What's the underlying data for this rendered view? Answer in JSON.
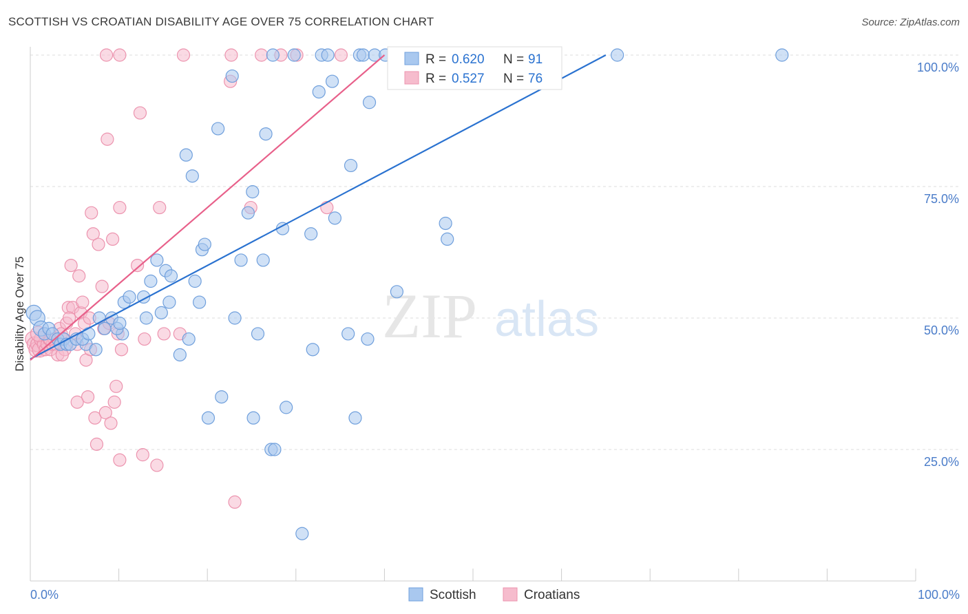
{
  "title": "SCOTTISH VS CROATIAN DISABILITY AGE OVER 75 CORRELATION CHART",
  "source": "Source: ZipAtlas.com",
  "watermark": {
    "zip": "ZIP",
    "atlas": "atlas"
  },
  "colors": {
    "scottish_fill": "#a9c8ef",
    "scottish_stroke": "#6f9fdc",
    "scottish_line": "#2a72d0",
    "croatian_fill": "#f6bccd",
    "croatian_stroke": "#ec93ae",
    "croatian_line": "#e8608a",
    "tick_text": "#4a7cc9",
    "grid": "#dddddd"
  },
  "legend": {
    "rows": [
      {
        "r_label": "R =",
        "r_value": "0.620",
        "n_label": "N =",
        "n_value": "91"
      },
      {
        "r_label": "R =",
        "r_value": "0.527",
        "n_label": "N =",
        "n_value": "76"
      }
    ]
  },
  "bottom_legend": [
    "Scottish",
    "Croatians"
  ],
  "chart_data": {
    "type": "scatter",
    "title": "SCOTTISH VS CROATIAN DISABILITY AGE OVER 75 CORRELATION CHART",
    "xlabel": "",
    "ylabel": "Disability Age Over 75",
    "xlim": [
      0,
      100
    ],
    "ylim": [
      0,
      100
    ],
    "x_tick_labels": [
      "0.0%",
      "100.0%"
    ],
    "y_tick_values": [
      25,
      50,
      75,
      100
    ],
    "y_tick_labels": [
      "25.0%",
      "50.0%",
      "75.0%",
      "100.0%"
    ],
    "grid": true,
    "legend_position": "top-center",
    "series": [
      {
        "name": "Scottish",
        "R": 0.62,
        "N": 91,
        "trend": [
          [
            0,
            42.2
          ],
          [
            65,
            100
          ]
        ],
        "points": [
          [
            0.4,
            51
          ],
          [
            0.8,
            50
          ],
          [
            1.2,
            48
          ],
          [
            1.6,
            47
          ],
          [
            2.1,
            48
          ],
          [
            2.5,
            47
          ],
          [
            3.1,
            46
          ],
          [
            3.4,
            45
          ],
          [
            3.8,
            46
          ],
          [
            4.1,
            45
          ],
          [
            4.5,
            45
          ],
          [
            5.2,
            46
          ],
          [
            6.3,
            45
          ],
          [
            5.9,
            46
          ],
          [
            6.6,
            47
          ],
          [
            7.4,
            44
          ],
          [
            7.8,
            50
          ],
          [
            8.4,
            48
          ],
          [
            9.2,
            50
          ],
          [
            10.4,
            47
          ],
          [
            9.8,
            48
          ],
          [
            10.1,
            49
          ],
          [
            10.6,
            53
          ],
          [
            11.2,
            54
          ],
          [
            12.8,
            54
          ],
          [
            13.1,
            50
          ],
          [
            13.6,
            57
          ],
          [
            14.3,
            61
          ],
          [
            14.8,
            51
          ],
          [
            15.3,
            59
          ],
          [
            15.9,
            58
          ],
          [
            15.7,
            53
          ],
          [
            16.9,
            43
          ],
          [
            17.9,
            46
          ],
          [
            18.6,
            57
          ],
          [
            19.1,
            53
          ],
          [
            19.4,
            63
          ],
          [
            19.7,
            64
          ],
          [
            21.2,
            86
          ],
          [
            22.8,
            96
          ],
          [
            23.1,
            50
          ],
          [
            23.8,
            61
          ],
          [
            24.6,
            70
          ],
          [
            25.1,
            74
          ],
          [
            25.7,
            47
          ],
          [
            26.3,
            61
          ],
          [
            26.6,
            85
          ],
          [
            27.2,
            25
          ],
          [
            27.4,
            100
          ],
          [
            27.6,
            25
          ],
          [
            28.5,
            67
          ],
          [
            28.9,
            33
          ],
          [
            29.8,
            100
          ],
          [
            30.7,
            9
          ],
          [
            31.7,
            66
          ],
          [
            31.9,
            44
          ],
          [
            32.6,
            93
          ],
          [
            32.9,
            100
          ],
          [
            33.6,
            100
          ],
          [
            34.1,
            95
          ],
          [
            34.4,
            69
          ],
          [
            35.9,
            47
          ],
          [
            36.2,
            79
          ],
          [
            37.2,
            100
          ],
          [
            37.6,
            100
          ],
          [
            38.1,
            46
          ],
          [
            38.3,
            91
          ],
          [
            38.9,
            100
          ],
          [
            40.1,
            100
          ],
          [
            41.4,
            55
          ],
          [
            41.6,
            100
          ],
          [
            42.8,
            100
          ],
          [
            43.6,
            100
          ],
          [
            46.9,
            68
          ],
          [
            47.1,
            65
          ],
          [
            47.3,
            100
          ],
          [
            50.1,
            100
          ],
          [
            51.1,
            100
          ],
          [
            52.2,
            100
          ],
          [
            53.6,
            100
          ],
          [
            55.6,
            100
          ],
          [
            57.2,
            100
          ],
          [
            58.8,
            100
          ],
          [
            66.3,
            100
          ],
          [
            84.9,
            100
          ],
          [
            20.1,
            31
          ],
          [
            25.2,
            31
          ],
          [
            36.7,
            31
          ],
          [
            21.6,
            35
          ],
          [
            17.6,
            81
          ],
          [
            18.3,
            77
          ]
        ]
      },
      {
        "name": "Croatians",
        "R": 0.527,
        "N": 76,
        "trend": [
          [
            0,
            42
          ],
          [
            40,
            100
          ]
        ],
        "points": [
          [
            0.3,
            46
          ],
          [
            0.5,
            45
          ],
          [
            0.7,
            44
          ],
          [
            0.9,
            45
          ],
          [
            1.1,
            44
          ],
          [
            1.3,
            46
          ],
          [
            1.5,
            45
          ],
          [
            1.7,
            44
          ],
          [
            1.9,
            45
          ],
          [
            2.1,
            46
          ],
          [
            2.3,
            44
          ],
          [
            2.5,
            45
          ],
          [
            2.7,
            46
          ],
          [
            2.9,
            45
          ],
          [
            3.1,
            43
          ],
          [
            3.3,
            48
          ],
          [
            3.5,
            47
          ],
          [
            3.7,
            46
          ],
          [
            3.9,
            44
          ],
          [
            4.1,
            49
          ],
          [
            4.3,
            52
          ],
          [
            4.6,
            60
          ],
          [
            4.8,
            52
          ],
          [
            5.1,
            47
          ],
          [
            5.3,
            45
          ],
          [
            5.5,
            58
          ],
          [
            5.7,
            51
          ],
          [
            5.9,
            53
          ],
          [
            6.1,
            49
          ],
          [
            6.3,
            42
          ],
          [
            6.5,
            35
          ],
          [
            6.7,
            50
          ],
          [
            6.9,
            70
          ],
          [
            7.1,
            66
          ],
          [
            7.3,
            31
          ],
          [
            7.5,
            26
          ],
          [
            7.7,
            64
          ],
          [
            8.1,
            56
          ],
          [
            8.3,
            48
          ],
          [
            8.5,
            32
          ],
          [
            8.7,
            84
          ],
          [
            8.9,
            49
          ],
          [
            9.1,
            30
          ],
          [
            9.3,
            65
          ],
          [
            9.5,
            34
          ],
          [
            9.7,
            37
          ],
          [
            9.9,
            47
          ],
          [
            10.1,
            71
          ],
          [
            10.3,
            44
          ],
          [
            10.1,
            23
          ],
          [
            12.1,
            60
          ],
          [
            12.4,
            89
          ],
          [
            12.7,
            24
          ],
          [
            12.9,
            46
          ],
          [
            14.3,
            22
          ],
          [
            14.6,
            71
          ],
          [
            15.1,
            47
          ],
          [
            16.9,
            47
          ],
          [
            22.6,
            95
          ],
          [
            23.1,
            15
          ],
          [
            24.9,
            71
          ],
          [
            30.1,
            100
          ],
          [
            33.5,
            71
          ],
          [
            35.1,
            100
          ],
          [
            8.6,
            100
          ],
          [
            10.1,
            100
          ],
          [
            17.3,
            100
          ],
          [
            22.7,
            100
          ],
          [
            26.1,
            100
          ],
          [
            28.3,
            100
          ],
          [
            5.3,
            34
          ],
          [
            2.2,
            46
          ],
          [
            0.9,
            47
          ],
          [
            3.6,
            43
          ],
          [
            4.4,
            50
          ],
          [
            6.8,
            44
          ]
        ]
      }
    ]
  },
  "axis_frame": {
    "plot_left_pct": 0,
    "plot_right_pct": 100
  }
}
